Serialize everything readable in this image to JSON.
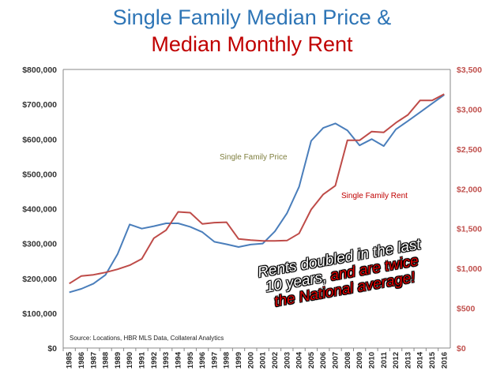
{
  "title_line1": "Single Family Median Price &",
  "title_line2": "Median Monthly Rent",
  "callout": {
    "line1": "Rents doubled in the last",
    "line2a": "10 years,",
    "line2b": "and are twice",
    "line3": "the National average!"
  },
  "colors": {
    "price": "#4a7ebb",
    "rent": "#be4b48",
    "title_blue": "#2e75b6",
    "title_red": "#c00000"
  },
  "chart_data": {
    "type": "line",
    "x": [
      "1985",
      "1986",
      "1987",
      "1988",
      "1989",
      "1990",
      "1991",
      "1992",
      "1993",
      "1994",
      "1995",
      "1996",
      "1997",
      "1998",
      "1999",
      "2000",
      "2001",
      "2002",
      "2003",
      "2004",
      "2005",
      "2006",
      "2007",
      "2008",
      "2009",
      "2010",
      "2011",
      "2012",
      "2013",
      "2014",
      "2015",
      "2016"
    ],
    "left_axis": {
      "ylim": [
        0,
        800000
      ],
      "ticks": [
        "$0",
        "$100,000",
        "$200,000",
        "$300,000",
        "$400,000",
        "$500,000",
        "$600,000",
        "$700,000",
        "$800,000"
      ]
    },
    "right_axis": {
      "ylim": [
        0,
        3500
      ],
      "ticks": [
        "$0",
        "$500",
        "$1,000",
        "$1,500",
        "$2,000",
        "$2,500",
        "$3,000",
        "$3,500"
      ]
    },
    "series": [
      {
        "name": "Single Family Price",
        "axis": "left",
        "values": [
          160000,
          170000,
          185000,
          210000,
          270000,
          355000,
          343000,
          350000,
          358000,
          358000,
          348000,
          333000,
          305000,
          298000,
          290000,
          297000,
          300000,
          335000,
          387000,
          463000,
          595000,
          632000,
          645000,
          625000,
          582000,
          600000,
          580000,
          628000,
          652000,
          677000,
          702000,
          727000
        ]
      },
      {
        "name": "Single Family Rent",
        "axis": "right",
        "values": [
          810,
          905,
          920,
          950,
          990,
          1040,
          1120,
          1380,
          1480,
          1710,
          1700,
          1560,
          1575,
          1580,
          1370,
          1355,
          1345,
          1345,
          1350,
          1440,
          1740,
          1930,
          2040,
          2610,
          2610,
          2720,
          2710,
          2830,
          2930,
          3110,
          3110,
          3190
        ]
      }
    ],
    "grid": false,
    "annotations": [
      "Source: Locations, HBR MLS Data, Collateral Analytics"
    ]
  }
}
